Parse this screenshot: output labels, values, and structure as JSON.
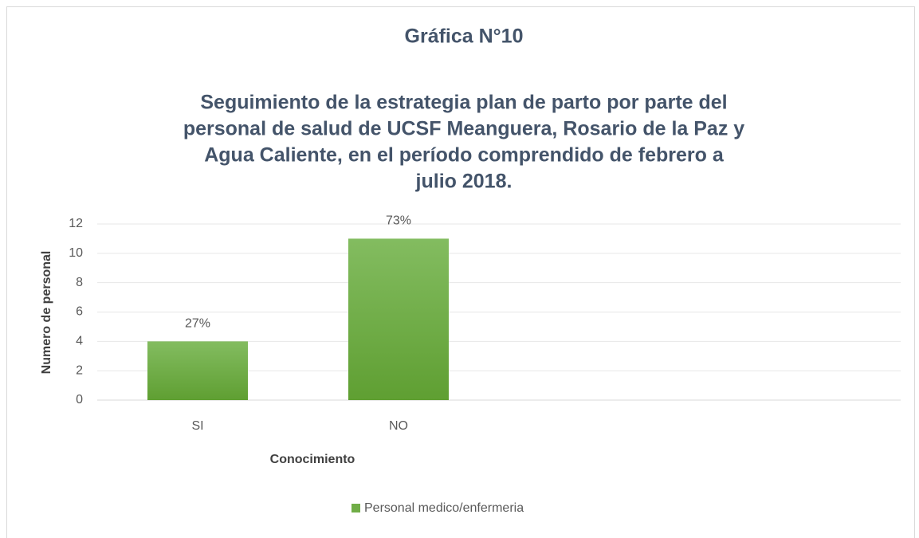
{
  "chart_data": {
    "type": "bar",
    "title": "Gráfica N°10",
    "subtitle": [
      "Seguimiento de la estrategia plan de parto por parte del",
      "personal de salud de UCSF Meanguera, Rosario de la Paz y",
      "Agua Caliente, en el período comprendido de febrero a",
      "julio 2018."
    ],
    "x_label": "Conocimiento",
    "y_label": "Numero de personal",
    "categories": [
      "SI",
      "NO",
      null,
      null
    ],
    "series": [
      {
        "name": "Personal medico/enfermeria",
        "color": "#70ad47",
        "values": [
          4,
          11,
          null,
          null
        ],
        "value_labels": [
          "27%",
          "73%",
          null,
          null
        ]
      }
    ],
    "ylim": [
      0,
      12
    ],
    "yticks": [
      0,
      2,
      4,
      6,
      8,
      10,
      12
    ],
    "grid": true,
    "legend": "bottom"
  }
}
